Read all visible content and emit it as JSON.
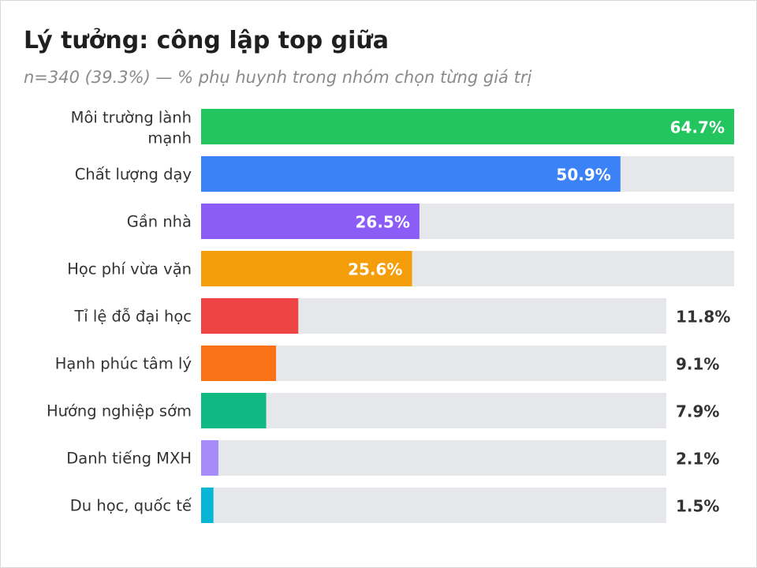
{
  "header": {
    "title": "Lý tưởng: công lập top giữa",
    "subtitle": "n=340 (39.3%) — % phụ huynh trong nhóm chọn từng giá trị"
  },
  "chart_data": {
    "type": "bar",
    "orientation": "horizontal",
    "title": "Lý tưởng: công lập top giữa",
    "subtitle": "n=340 (39.3%) — % phụ huynh trong nhóm chọn từng giá trị",
    "categories": [
      "Môi trường lành mạnh",
      "Chất lượng dạy",
      "Gần nhà",
      "Học phí vừa vặn",
      "Tỉ lệ đỗ đại học",
      "Hạnh phúc tâm lý",
      "Hướng nghiệp sớm",
      "Danh tiếng MXH",
      "Du học, quốc tế"
    ],
    "values": [
      64.7,
      50.9,
      26.5,
      25.6,
      11.8,
      9.1,
      7.9,
      2.1,
      1.5
    ],
    "value_labels": [
      "64.7%",
      "50.9%",
      "26.5%",
      "25.6%",
      "11.8%",
      "9.1%",
      "7.9%",
      "2.1%",
      "1.5%"
    ],
    "colors": [
      "#22c55e",
      "#3b82f6",
      "#8b5cf6",
      "#f59e0b",
      "#ef4444",
      "#f97316",
      "#10b981",
      "#a78bfa",
      "#06b6d4"
    ],
    "track_color": "#e5e7eb",
    "xlim": [
      0,
      64.7
    ],
    "grid": false,
    "legend": "none"
  }
}
